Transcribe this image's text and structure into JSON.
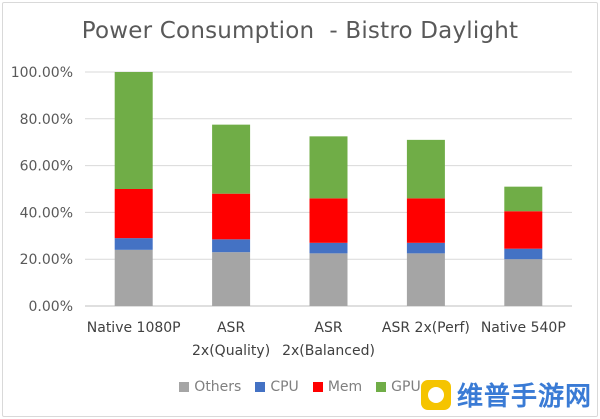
{
  "chart_data": {
    "type": "bar",
    "stacked": true,
    "title": "Power Consumption  - Bistro Daylight",
    "categories": [
      "Native 1080P",
      "ASR 2x(Quality)",
      "ASR 2x(Balanced)",
      "ASR 2x(Perf)",
      "Native 540P"
    ],
    "category_lines": [
      [
        "Native 1080P"
      ],
      [
        "ASR",
        "2x(Quality)"
      ],
      [
        "ASR",
        "2x(Balanced)"
      ],
      [
        "ASR 2x(Perf)"
      ],
      [
        "Native 540P"
      ]
    ],
    "series": [
      {
        "name": "Others",
        "color": "#a5a5a5",
        "values": [
          24,
          23,
          22.5,
          22.5,
          20
        ]
      },
      {
        "name": "CPU",
        "color": "#4472c4",
        "values": [
          5,
          5.5,
          4.5,
          4.5,
          4.5
        ]
      },
      {
        "name": "Mem",
        "color": "#ff0000",
        "values": [
          21,
          19.5,
          19,
          19,
          16
        ]
      },
      {
        "name": "GPU",
        "color": "#70ad47",
        "values": [
          50,
          29.5,
          26.5,
          25,
          10.5
        ]
      }
    ],
    "ylim": [
      0,
      100
    ],
    "yticks": [
      0,
      20,
      40,
      60,
      80,
      100
    ],
    "ytick_labels": [
      "0.00%",
      "20.00%",
      "40.00%",
      "60.00%",
      "80.00%",
      "100.00%"
    ],
    "legend_position": "bottom",
    "grid": true
  },
  "watermark": {
    "text": "维普手游网",
    "color": "#3a7bd5",
    "logo_color": "#f5c400",
    "icon": "game-controller-icon"
  }
}
